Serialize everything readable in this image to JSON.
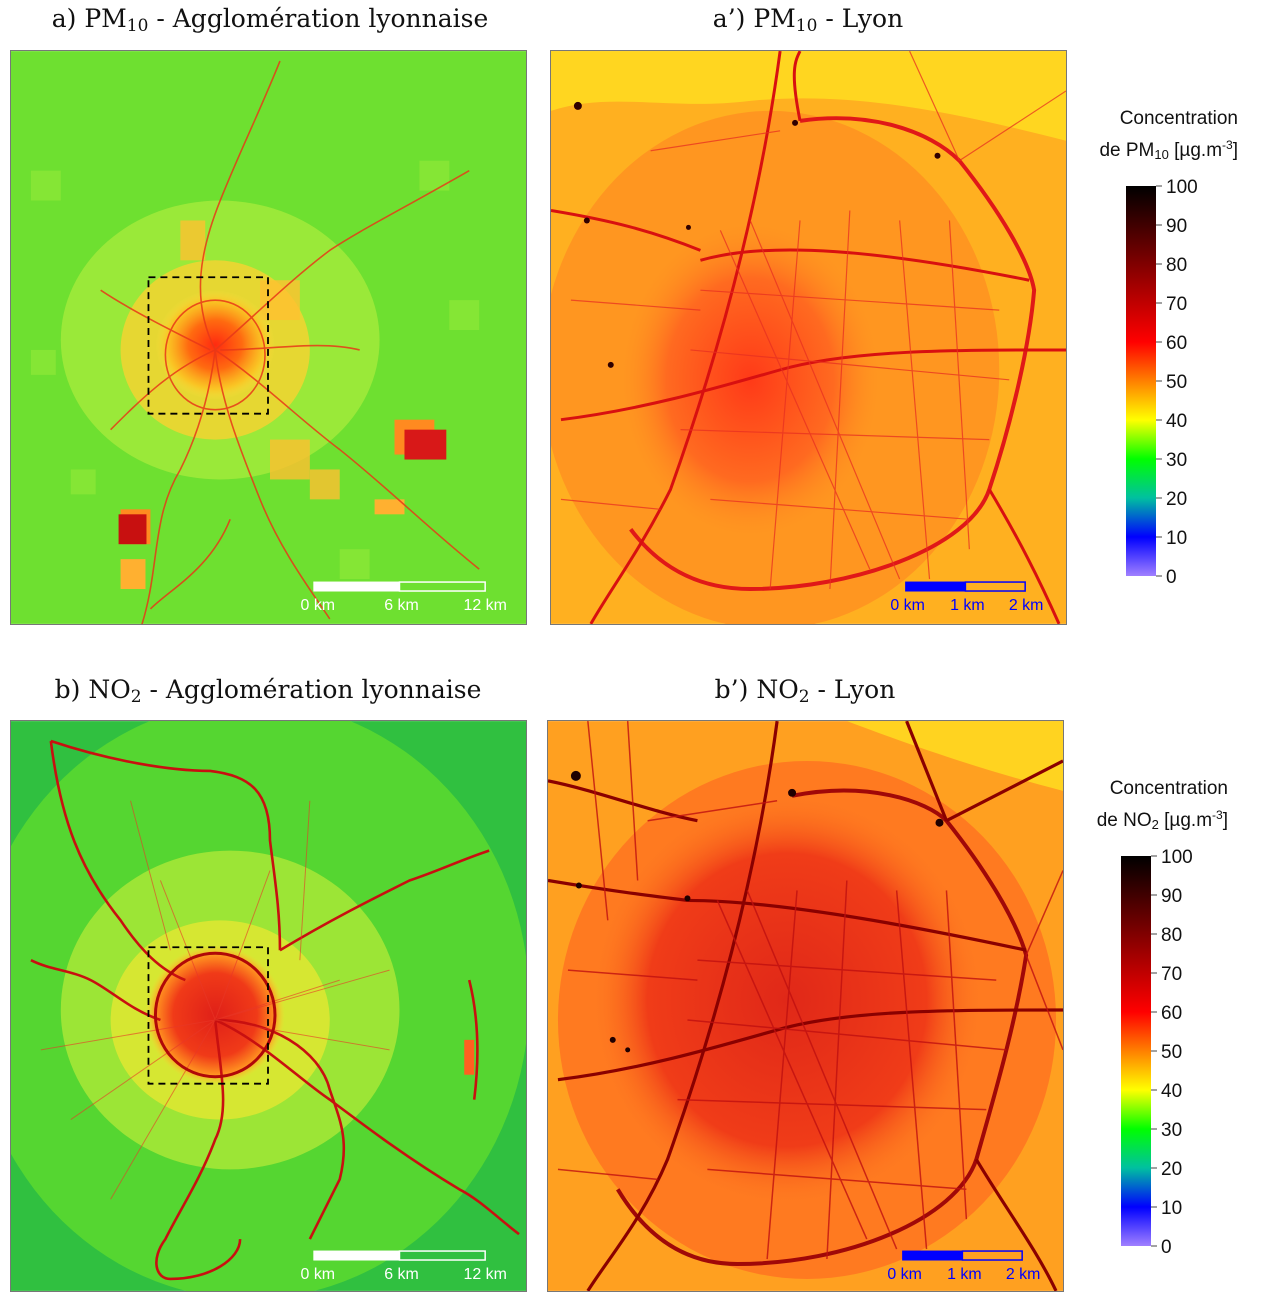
{
  "panels": [
    {
      "id": "a",
      "title_prefix": "a) PM",
      "title_sub": "10",
      "title_suffix": " - Agglomération lyonnaise"
    },
    {
      "id": "a2",
      "title_prefix": "a’) PM",
      "title_sub": "10",
      "title_suffix": " - Lyon"
    },
    {
      "id": "b",
      "title_prefix": "b) NO",
      "title_sub": "2",
      "title_suffix": " - Agglomération lyonnaise"
    },
    {
      "id": "b2",
      "title_prefix": "b’) NO",
      "title_sub": "2",
      "title_suffix": " - Lyon"
    }
  ],
  "scalebars": {
    "agglo": {
      "labels": [
        "0 km",
        "6 km",
        "12 km"
      ],
      "bar_color": "#ffffff",
      "label_color": "#ffffff"
    },
    "lyon": {
      "labels": [
        "0 km",
        "1 km",
        "2 km"
      ],
      "bar_color": "#0000ff",
      "label_color": "#0000ff"
    }
  },
  "colorbars": [
    {
      "line1": "Concentration",
      "prefix": "de PM",
      "sub": "10",
      "unit": " [µg.m",
      "sup": "-3",
      "close": "]"
    },
    {
      "line1": "Concentration",
      "prefix": "de NO",
      "sub": "2",
      "unit": " [µg.m",
      "sup": "-3",
      "close": "]"
    }
  ],
  "colorbar_ticks": [
    "100",
    "90",
    "80",
    "70",
    "60",
    "50",
    "40",
    "30",
    "20",
    "10",
    "0"
  ],
  "colorbar_range": [
    0,
    100
  ],
  "colorscale": [
    "#a080ff",
    "#0000ff",
    "#00c0a0",
    "#00ff00",
    "#ffff00",
    "#ff8000",
    "#ff0000",
    "#c00000",
    "#800000",
    "#400000",
    "#000000"
  ],
  "colors": {
    "green_background": "#66e02a",
    "urban_orange": "#ffa000",
    "road_red": "#e0101a"
  }
}
